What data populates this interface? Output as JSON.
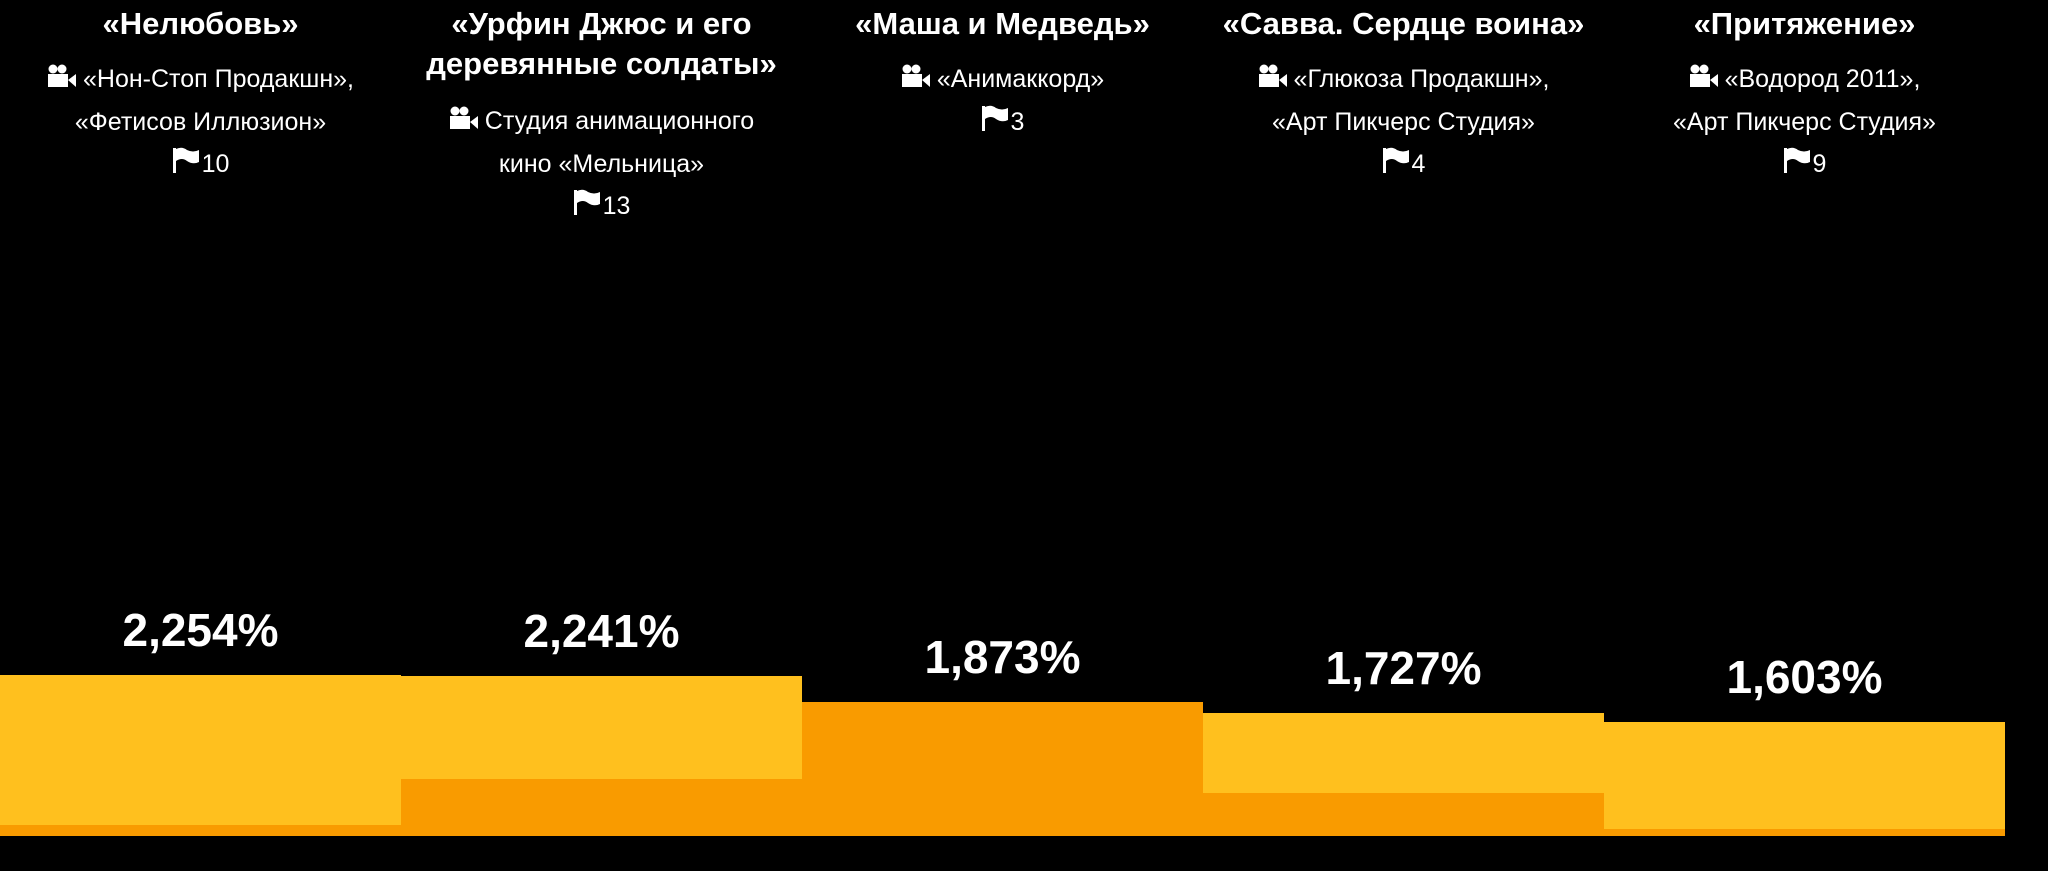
{
  "chart_data": {
    "type": "bar",
    "ylim": [
      0,
      2.4
    ],
    "colors": {
      "primary": "#FFC01E",
      "secondary": "#F99B00",
      "background": "#000000"
    },
    "items": [
      {
        "title": "«Нелюбовь»",
        "studio": [
          "«Нон-Стоп Продакшн»,",
          "«Фетисов Иллюзион»"
        ],
        "flags": "10",
        "label": "2,254%",
        "value": 2.254,
        "secondary_value": 0.16
      },
      {
        "title": "«Урфин Джюс и его деревянные солдаты»",
        "studio": [
          "Студия анимационного",
          "кино «Мельница»"
        ],
        "flags": "13",
        "label": "2,241%",
        "value": 2.241,
        "secondary_value": 0.8
      },
      {
        "title": "«Маша и Медведь»",
        "studio": [
          "«Анимаккорд»"
        ],
        "flags": "3",
        "label": "1,873%",
        "value": 1.873,
        "secondary_value": 1.873
      },
      {
        "title": "«Савва. Сердце воина»",
        "studio": [
          "«Глюкоза Продакшн»,",
          "«Арт Пикчерс Студия»"
        ],
        "flags": "4",
        "label": "1,727%",
        "value": 1.727,
        "secondary_value": 0.6
      },
      {
        "title": "«Притяжение»",
        "studio": [
          "«Водород 2011»,",
          "«Арт Пикчерс Студия»"
        ],
        "flags": "9",
        "label": "1,603%",
        "value": 1.603,
        "secondary_value": 0.1
      }
    ]
  }
}
